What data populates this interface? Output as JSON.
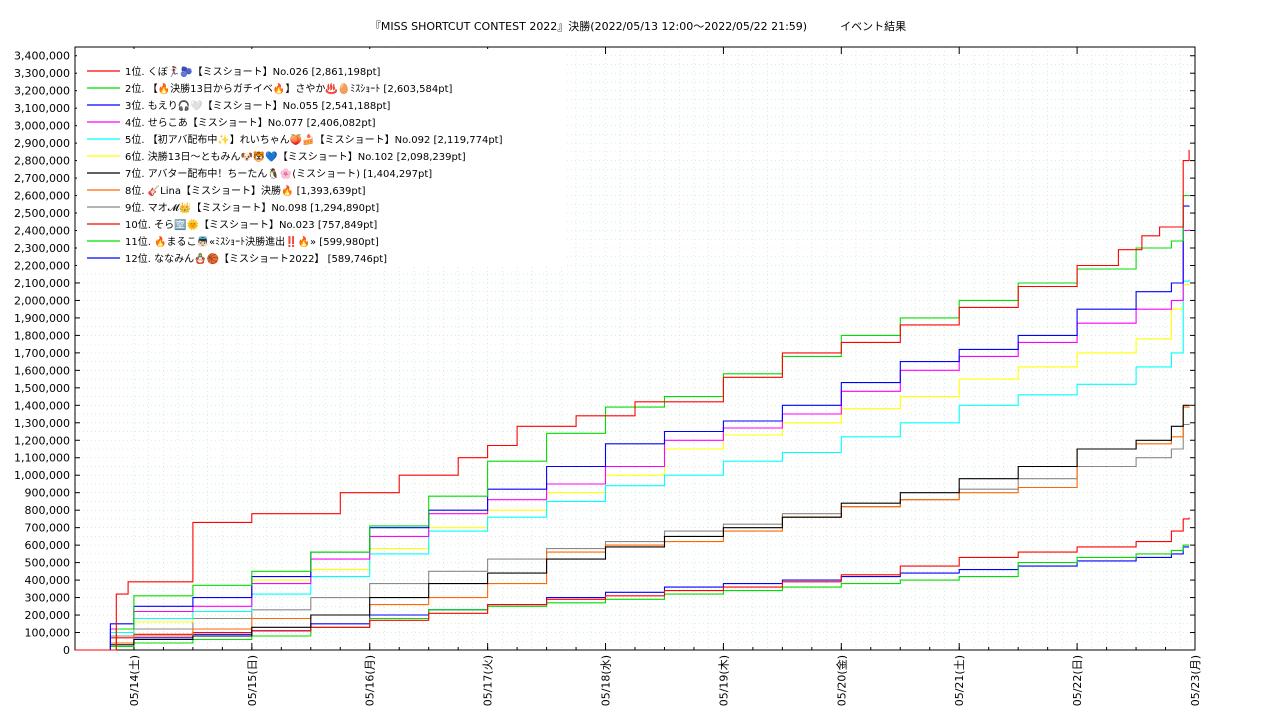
{
  "chart_data": {
    "type": "line",
    "title": "『MISS SHORTCUT CONTEST 2022』決勝(2022/05/13 12:00～2022/05/22 21:59)　　　イベント結果",
    "xlabel": "",
    "ylabel": "",
    "x_range": [
      "2022/05/13 12:00",
      "2022/05/23 00:00"
    ],
    "ylim": [
      0,
      3450000
    ],
    "grid": true,
    "legend_position": "top-left",
    "x_ticks": [
      "05/14(土)",
      "05/15(日)",
      "05/16(月)",
      "05/17(火)",
      "05/18(水)",
      "05/19(木)",
      "05/20(金)",
      "05/21(土)",
      "05/22(日)",
      "05/23(月)"
    ],
    "y_ticks": [
      "0",
      "100,000",
      "200,000",
      "300,000",
      "400,000",
      "500,000",
      "600,000",
      "700,000",
      "800,000",
      "900,000",
      "1,000,000",
      "1,100,000",
      "1,200,000",
      "1,300,000",
      "1,400,000",
      "1,500,000",
      "1,600,000",
      "1,700,000",
      "1,800,000",
      "1,900,000",
      "2,000,000",
      "2,100,000",
      "2,200,000",
      "2,300,000",
      "2,400,000",
      "2,500,000",
      "2,600,000",
      "2,700,000",
      "2,800,000",
      "2,900,000",
      "3,000,000",
      "3,100,000",
      "3,200,000",
      "3,300,000",
      "3,400,000"
    ],
    "x_unit": "days since 05/13 12:00",
    "series": [
      {
        "name": "1位. くぼ🏃‍♀️🫐【ミスショート】No.026 [2,861,198pt]",
        "color": "#ff0000",
        "x": [
          0,
          0.35,
          0.45,
          1.0,
          1.5,
          1.75,
          2.25,
          2.75,
          3.25,
          3.5,
          3.75,
          4.25,
          4.75,
          5.0,
          5.5,
          6.0,
          6.5,
          7.0,
          7.5,
          8.0,
          8.5,
          8.85,
          9.05,
          9.2,
          9.4,
          9.45
        ],
        "y": [
          0,
          320000,
          390000,
          730000,
          780000,
          780000,
          900000,
          1000000,
          1100000,
          1170000,
          1280000,
          1340000,
          1420000,
          1420000,
          1560000,
          1700000,
          1760000,
          1860000,
          1960000,
          2080000,
          2200000,
          2290000,
          2370000,
          2420000,
          2800000,
          2861198
        ]
      },
      {
        "name": "2位. 【🔥決勝13日からガチイベ🔥】さやか♨️🥚ﾐｽｼｮｰﾄ [2,603,584pt]",
        "color": "#00dd00",
        "x": [
          0,
          0.35,
          0.5,
          1.0,
          1.5,
          2.0,
          2.5,
          3.0,
          3.5,
          4.0,
          4.5,
          5.0,
          5.5,
          6.0,
          6.5,
          7.0,
          7.5,
          8.0,
          8.5,
          9.0,
          9.3,
          9.4,
          9.45
        ],
        "y": [
          0,
          120000,
          310000,
          370000,
          450000,
          560000,
          710000,
          880000,
          1080000,
          1240000,
          1390000,
          1450000,
          1580000,
          1680000,
          1800000,
          1900000,
          2000000,
          2100000,
          2180000,
          2300000,
          2340000,
          2600000,
          2603584
        ]
      },
      {
        "name": "3位. もえり🎧🤍【ミスショート】No.055 [2,541,188pt]",
        "color": "#0000ff",
        "x": [
          0,
          0.3,
          0.5,
          1.0,
          1.5,
          2.0,
          2.5,
          3.0,
          3.5,
          4.0,
          4.5,
          5.0,
          5.5,
          6.0,
          6.5,
          7.0,
          7.5,
          8.0,
          8.5,
          9.0,
          9.3,
          9.4,
          9.45
        ],
        "y": [
          0,
          150000,
          250000,
          300000,
          420000,
          560000,
          700000,
          800000,
          920000,
          1050000,
          1180000,
          1250000,
          1310000,
          1400000,
          1530000,
          1650000,
          1720000,
          1800000,
          1950000,
          2050000,
          2100000,
          2540000,
          2541188
        ]
      },
      {
        "name": "4位. せらこあ【ミスショート】No.077 [2,406,082pt]",
        "color": "#ff00ff",
        "x": [
          0,
          0.3,
          0.5,
          1.0,
          1.5,
          2.0,
          2.5,
          3.0,
          3.5,
          4.0,
          4.5,
          5.0,
          5.5,
          6.0,
          6.5,
          7.0,
          7.5,
          8.0,
          8.5,
          9.0,
          9.3,
          9.4,
          9.45
        ],
        "y": [
          0,
          120000,
          220000,
          250000,
          380000,
          520000,
          650000,
          780000,
          860000,
          950000,
          1050000,
          1200000,
          1270000,
          1350000,
          1480000,
          1600000,
          1680000,
          1760000,
          1870000,
          1950000,
          2000000,
          2400000,
          2406082
        ]
      },
      {
        "name": "5位. 【初アバ配布中✨】れいちゃん🍑🍰【ミスショート】No.092 [2,119,774pt]",
        "color": "#00ffff",
        "x": [
          0,
          0.3,
          0.5,
          1.0,
          1.5,
          2.0,
          2.5,
          3.0,
          3.5,
          4.0,
          4.5,
          5.0,
          5.5,
          6.0,
          6.5,
          7.0,
          7.5,
          8.0,
          8.5,
          9.0,
          9.3,
          9.4,
          9.45
        ],
        "y": [
          0,
          100000,
          180000,
          220000,
          320000,
          420000,
          550000,
          680000,
          760000,
          850000,
          940000,
          1000000,
          1080000,
          1130000,
          1220000,
          1300000,
          1400000,
          1460000,
          1520000,
          1620000,
          1700000,
          2110000,
          2119774
        ]
      },
      {
        "name": "6位. 決勝13日〜ともみん🐶🐯💙【ミスショート】No.102 [2,098,239pt]",
        "color": "#ffff00",
        "x": [
          0,
          0.3,
          0.5,
          1.0,
          1.5,
          2.0,
          2.5,
          3.0,
          3.5,
          4.0,
          4.5,
          5.0,
          5.5,
          6.0,
          6.5,
          7.0,
          7.5,
          8.0,
          8.5,
          9.0,
          9.3,
          9.4,
          9.45
        ],
        "y": [
          0,
          100000,
          160000,
          220000,
          400000,
          460000,
          580000,
          700000,
          800000,
          900000,
          1000000,
          1150000,
          1230000,
          1300000,
          1380000,
          1450000,
          1550000,
          1620000,
          1700000,
          1780000,
          1950000,
          2090000,
          2098239
        ]
      },
      {
        "name": "7位. アバター配布中！ちーたん🐧🌸(ミスショート) [1,404,297pt]",
        "color": "#000000",
        "x": [
          0,
          0.3,
          0.5,
          1.0,
          1.5,
          2.0,
          2.5,
          3.0,
          3.5,
          4.0,
          4.5,
          5.0,
          5.5,
          6.0,
          6.5,
          7.0,
          7.5,
          8.0,
          8.5,
          9.0,
          9.3,
          9.4,
          9.45
        ],
        "y": [
          0,
          30000,
          60000,
          80000,
          130000,
          200000,
          300000,
          380000,
          440000,
          520000,
          590000,
          650000,
          700000,
          760000,
          840000,
          900000,
          980000,
          1050000,
          1150000,
          1200000,
          1280000,
          1400000,
          1404297
        ]
      },
      {
        "name": "8位. 🎸Lina【ミスショート】決勝🔥 [1,393,639pt]",
        "color": "#ff6600",
        "x": [
          0,
          0.3,
          0.5,
          1.0,
          1.5,
          2.0,
          2.5,
          3.0,
          3.5,
          4.0,
          4.5,
          5.0,
          5.5,
          6.0,
          6.5,
          7.0,
          7.5,
          8.0,
          8.5,
          9.0,
          9.3,
          9.4,
          9.45
        ],
        "y": [
          0,
          40000,
          80000,
          120000,
          180000,
          200000,
          260000,
          300000,
          380000,
          560000,
          600000,
          620000,
          680000,
          760000,
          820000,
          860000,
          900000,
          930000,
          1150000,
          1180000,
          1220000,
          1390000,
          1393639
        ]
      },
      {
        "name": "9位. マオ𝓜👑【ミスショート】No.098 [1,294,890pt]",
        "color": "#888888",
        "x": [
          0,
          0.3,
          0.5,
          1.0,
          1.5,
          2.0,
          2.5,
          3.0,
          3.5,
          4.0,
          4.5,
          5.0,
          5.5,
          6.0,
          6.5,
          7.0,
          7.5,
          8.0,
          8.5,
          9.0,
          9.3,
          9.4,
          9.45
        ],
        "y": [
          0,
          80000,
          120000,
          180000,
          230000,
          300000,
          380000,
          450000,
          520000,
          580000,
          620000,
          680000,
          720000,
          780000,
          820000,
          860000,
          920000,
          980000,
          1050000,
          1100000,
          1150000,
          1290000,
          1294890
        ]
      },
      {
        "name": "10位. そら🈳🌞【ミスショート】No.023 [757,849pt]",
        "color": "#ff0000",
        "x": [
          0,
          0.3,
          0.5,
          1.0,
          1.5,
          2.0,
          2.5,
          3.0,
          3.5,
          4.0,
          4.5,
          5.0,
          5.5,
          6.0,
          6.5,
          7.0,
          7.5,
          8.0,
          8.5,
          9.0,
          9.3,
          9.4,
          9.45
        ],
        "y": [
          0,
          70000,
          90000,
          100000,
          110000,
          130000,
          170000,
          210000,
          260000,
          290000,
          310000,
          340000,
          360000,
          390000,
          430000,
          480000,
          530000,
          560000,
          590000,
          620000,
          680000,
          750000,
          757849
        ]
      },
      {
        "name": "11位. 🔥まるこ👼🏻«ﾐｽｼｮｰﾄ決勝進出‼️🔥» [599,980pt]",
        "color": "#00dd00",
        "x": [
          0,
          0.3,
          0.5,
          1.0,
          1.5,
          2.0,
          2.5,
          3.0,
          3.5,
          4.0,
          4.5,
          5.0,
          5.5,
          6.0,
          6.5,
          7.0,
          7.5,
          8.0,
          8.5,
          9.0,
          9.3,
          9.4,
          9.45
        ],
        "y": [
          0,
          20000,
          40000,
          60000,
          80000,
          130000,
          180000,
          230000,
          250000,
          270000,
          290000,
          320000,
          340000,
          360000,
          380000,
          400000,
          420000,
          500000,
          530000,
          550000,
          570000,
          600000,
          599980
        ]
      },
      {
        "name": "12位. ななみん🪆🏀【ミスショート2022】 [589,746pt]",
        "color": "#0000ff",
        "x": [
          0,
          0.3,
          0.5,
          1.0,
          1.5,
          2.0,
          2.5,
          3.0,
          3.5,
          4.0,
          4.5,
          5.0,
          5.5,
          6.0,
          6.5,
          7.0,
          7.5,
          8.0,
          8.5,
          9.0,
          9.3,
          9.4,
          9.45
        ],
        "y": [
          0,
          40000,
          70000,
          90000,
          110000,
          150000,
          200000,
          230000,
          260000,
          300000,
          330000,
          360000,
          380000,
          400000,
          420000,
          440000,
          460000,
          480000,
          510000,
          530000,
          550000,
          590000,
          589746
        ]
      }
    ]
  }
}
